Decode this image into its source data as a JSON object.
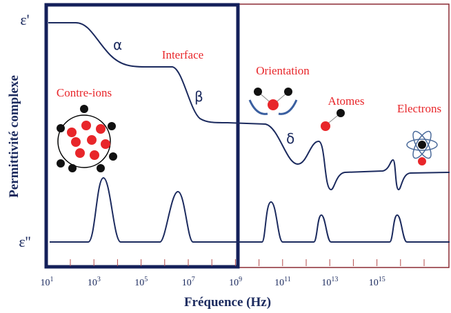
{
  "axes": {
    "y_label": "Permittivité complexe",
    "x_label": "Fréquence (Hz)",
    "y_top": "ε'",
    "y_bottom": "ε''"
  },
  "x_ticks": [
    {
      "base": "10",
      "exp": "1"
    },
    {
      "base": "10",
      "exp": "3"
    },
    {
      "base": "10",
      "exp": "5"
    },
    {
      "base": "10",
      "exp": "7"
    },
    {
      "base": "10",
      "exp": "9"
    },
    {
      "base": "10",
      "exp": "11"
    },
    {
      "base": "10",
      "exp": "13"
    },
    {
      "base": "10",
      "exp": "15"
    }
  ],
  "relaxations": {
    "alpha": "α",
    "beta": "β",
    "delta": "δ"
  },
  "mechanisms": {
    "counter_ions": "Contre-ions",
    "interface": "Interface",
    "orientation": "Orientation",
    "atoms": "Atomes",
    "electrons": "Electrons"
  }
}
